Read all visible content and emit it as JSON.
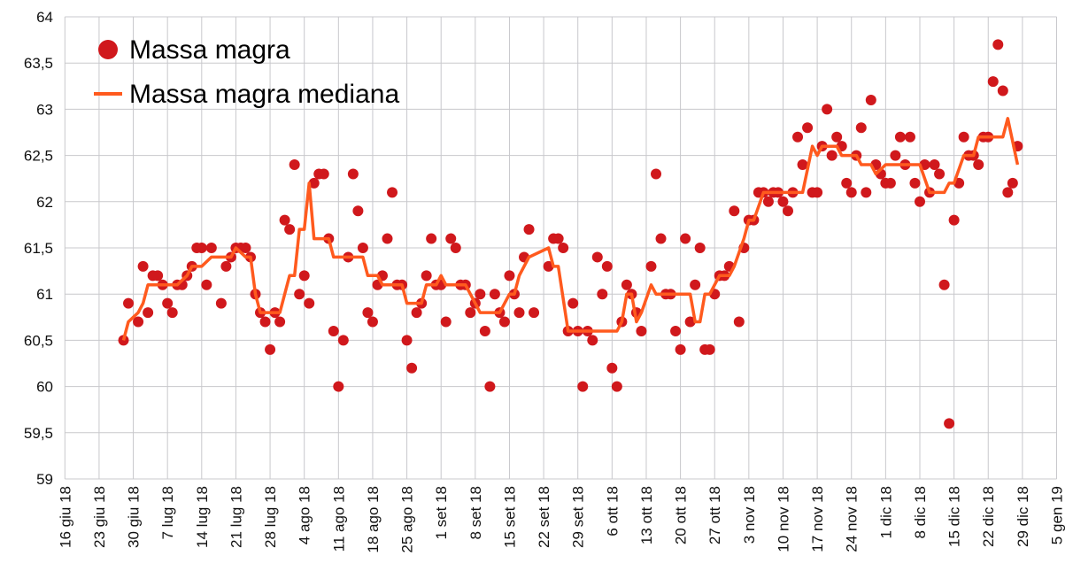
{
  "chart_data": {
    "type": "scatter",
    "title": "",
    "xlabel": "",
    "ylabel": "",
    "x_unit": "days since 16 giu 18",
    "xlim": [
      0,
      203
    ],
    "ylim": [
      59,
      64
    ],
    "grid": true,
    "legend_position": "top-left",
    "y_ticks": [
      59,
      59.5,
      60,
      60.5,
      61,
      61.5,
      62,
      62.5,
      63,
      63.5,
      64
    ],
    "y_tick_labels": [
      "59",
      "59,5",
      "60",
      "60,5",
      "61",
      "61,5",
      "62",
      "62,5",
      "63",
      "63,5",
      "64"
    ],
    "x_tick_labels": [
      "16 giu 18",
      "23 giu 18",
      "30 giu 18",
      "7 lug 18",
      "14 lug 18",
      "21 lug 18",
      "28 lug 18",
      "4 ago 18",
      "11 ago 18",
      "18 ago 18",
      "25 ago 18",
      "1 set 18",
      "8 set 18",
      "15 set 18",
      "22 set 18",
      "29 set 18",
      "6 ott 18",
      "13 ott 18",
      "20 ott 18",
      "27 ott 18",
      "3 nov 18",
      "10 nov 18",
      "17 nov 18",
      "24 nov 18",
      "1 dic 18",
      "8 dic 18",
      "15 dic 18",
      "22 dic 18",
      "29 dic 18",
      "5 gen 19"
    ],
    "series": [
      {
        "name": "Massa magra",
        "kind": "points",
        "color": "#d0181c",
        "points": [
          [
            12,
            60.5
          ],
          [
            13,
            60.9
          ],
          [
            15,
            60.7
          ],
          [
            16,
            61.3
          ],
          [
            17,
            60.8
          ],
          [
            18,
            61.2
          ],
          [
            19,
            61.2
          ],
          [
            20,
            61.1
          ],
          [
            21,
            60.9
          ],
          [
            22,
            60.8
          ],
          [
            23,
            61.1
          ],
          [
            24,
            61.1
          ],
          [
            25,
            61.2
          ],
          [
            26,
            61.3
          ],
          [
            27,
            61.5
          ],
          [
            28,
            61.5
          ],
          [
            29,
            61.1
          ],
          [
            30,
            61.5
          ],
          [
            32,
            60.9
          ],
          [
            33,
            61.3
          ],
          [
            34,
            61.4
          ],
          [
            35,
            61.5
          ],
          [
            36,
            61.5
          ],
          [
            37,
            61.5
          ],
          [
            38,
            61.4
          ],
          [
            39,
            61.0
          ],
          [
            40,
            60.8
          ],
          [
            41,
            60.7
          ],
          [
            42,
            60.4
          ],
          [
            43,
            60.8
          ],
          [
            44,
            60.7
          ],
          [
            45,
            61.8
          ],
          [
            46,
            61.7
          ],
          [
            47,
            62.4
          ],
          [
            48,
            61.0
          ],
          [
            49,
            61.2
          ],
          [
            50,
            60.9
          ],
          [
            51,
            62.2
          ],
          [
            52,
            62.3
          ],
          [
            53,
            62.3
          ],
          [
            54,
            61.6
          ],
          [
            55,
            60.6
          ],
          [
            56,
            60.0
          ],
          [
            57,
            60.5
          ],
          [
            58,
            61.4
          ],
          [
            59,
            62.3
          ],
          [
            60,
            61.9
          ],
          [
            61,
            61.5
          ],
          [
            62,
            60.8
          ],
          [
            63,
            60.7
          ],
          [
            64,
            61.1
          ],
          [
            65,
            61.2
          ],
          [
            66,
            61.6
          ],
          [
            67,
            62.1
          ],
          [
            68,
            61.1
          ],
          [
            69,
            61.1
          ],
          [
            70,
            60.5
          ],
          [
            71,
            60.2
          ],
          [
            72,
            60.8
          ],
          [
            73,
            60.9
          ],
          [
            74,
            61.2
          ],
          [
            75,
            61.6
          ],
          [
            76,
            61.1
          ],
          [
            77,
            61.1
          ],
          [
            78,
            60.7
          ],
          [
            79,
            61.6
          ],
          [
            80,
            61.5
          ],
          [
            81,
            61.1
          ],
          [
            82,
            61.1
          ],
          [
            83,
            60.8
          ],
          [
            84,
            60.9
          ],
          [
            85,
            61.0
          ],
          [
            86,
            60.6
          ],
          [
            87,
            60.0
          ],
          [
            88,
            61.0
          ],
          [
            89,
            60.8
          ],
          [
            90,
            60.7
          ],
          [
            91,
            61.2
          ],
          [
            92,
            61.0
          ],
          [
            93,
            60.8
          ],
          [
            94,
            61.4
          ],
          [
            95,
            61.7
          ],
          [
            96,
            60.8
          ],
          [
            99,
            61.3
          ],
          [
            100,
            61.6
          ],
          [
            101,
            61.6
          ],
          [
            102,
            61.5
          ],
          [
            103,
            60.6
          ],
          [
            104,
            60.9
          ],
          [
            105,
            60.6
          ],
          [
            106,
            60.0
          ],
          [
            107,
            60.6
          ],
          [
            108,
            60.5
          ],
          [
            109,
            61.4
          ],
          [
            110,
            61.0
          ],
          [
            111,
            61.3
          ],
          [
            112,
            60.2
          ],
          [
            113,
            60.0
          ],
          [
            114,
            60.7
          ],
          [
            115,
            61.1
          ],
          [
            116,
            61.0
          ],
          [
            117,
            60.8
          ],
          [
            118,
            60.6
          ],
          [
            120,
            61.3
          ],
          [
            121,
            62.3
          ],
          [
            122,
            61.6
          ],
          [
            123,
            61.0
          ],
          [
            124,
            61.0
          ],
          [
            125,
            60.6
          ],
          [
            126,
            60.4
          ],
          [
            127,
            61.6
          ],
          [
            128,
            60.7
          ],
          [
            129,
            61.1
          ],
          [
            130,
            61.5
          ],
          [
            131,
            60.4
          ],
          [
            132,
            60.4
          ],
          [
            133,
            61.0
          ],
          [
            134,
            61.2
          ],
          [
            135,
            61.2
          ],
          [
            136,
            61.3
          ],
          [
            137,
            61.9
          ],
          [
            138,
            60.7
          ],
          [
            139,
            61.5
          ],
          [
            140,
            61.8
          ],
          [
            141,
            61.8
          ],
          [
            142,
            62.1
          ],
          [
            143,
            62.1
          ],
          [
            144,
            62.0
          ],
          [
            145,
            62.1
          ],
          [
            146,
            62.1
          ],
          [
            147,
            62.0
          ],
          [
            148,
            61.9
          ],
          [
            149,
            62.1
          ],
          [
            150,
            62.7
          ],
          [
            151,
            62.4
          ],
          [
            152,
            62.8
          ],
          [
            153,
            62.1
          ],
          [
            154,
            62.1
          ],
          [
            155,
            62.6
          ],
          [
            156,
            63.0
          ],
          [
            157,
            62.5
          ],
          [
            158,
            62.7
          ],
          [
            159,
            62.6
          ],
          [
            160,
            62.2
          ],
          [
            161,
            62.1
          ],
          [
            162,
            62.5
          ],
          [
            163,
            62.8
          ],
          [
            164,
            62.1
          ],
          [
            165,
            63.1
          ],
          [
            166,
            62.4
          ],
          [
            167,
            62.3
          ],
          [
            168,
            62.2
          ],
          [
            169,
            62.2
          ],
          [
            170,
            62.5
          ],
          [
            171,
            62.7
          ],
          [
            172,
            62.4
          ],
          [
            173,
            62.7
          ],
          [
            174,
            62.2
          ],
          [
            175,
            62.0
          ],
          [
            176,
            62.4
          ],
          [
            177,
            62.1
          ],
          [
            178,
            62.4
          ],
          [
            179,
            62.3
          ],
          [
            180,
            61.1
          ],
          [
            181,
            59.6
          ],
          [
            182,
            61.8
          ],
          [
            183,
            62.2
          ],
          [
            184,
            62.7
          ],
          [
            185,
            62.5
          ],
          [
            186,
            62.5
          ],
          [
            187,
            62.4
          ],
          [
            188,
            62.7
          ],
          [
            189,
            62.7
          ],
          [
            190,
            63.3
          ],
          [
            191,
            63.7
          ],
          [
            192,
            63.2
          ],
          [
            193,
            62.1
          ],
          [
            194,
            62.2
          ],
          [
            195,
            62.6
          ]
        ]
      },
      {
        "name": "Massa magra mediana",
        "kind": "line",
        "color": "#ff5a1e",
        "points": [
          [
            12,
            60.5
          ],
          [
            13,
            60.7
          ],
          [
            15,
            60.8
          ],
          [
            16,
            60.9
          ],
          [
            17,
            61.1
          ],
          [
            23,
            61.1
          ],
          [
            25,
            61.2
          ],
          [
            26,
            61.3
          ],
          [
            28,
            61.3
          ],
          [
            30,
            61.4
          ],
          [
            34,
            61.4
          ],
          [
            35,
            61.5
          ],
          [
            37,
            61.4
          ],
          [
            38,
            61.4
          ],
          [
            39,
            61.0
          ],
          [
            40,
            60.8
          ],
          [
            44,
            60.8
          ],
          [
            46,
            61.2
          ],
          [
            47,
            61.2
          ],
          [
            48,
            61.7
          ],
          [
            49,
            61.7
          ],
          [
            50,
            62.2
          ],
          [
            51,
            61.6
          ],
          [
            54,
            61.6
          ],
          [
            55,
            61.4
          ],
          [
            61,
            61.4
          ],
          [
            62,
            61.2
          ],
          [
            64,
            61.2
          ],
          [
            65,
            61.1
          ],
          [
            69,
            61.1
          ],
          [
            70,
            60.9
          ],
          [
            73,
            60.9
          ],
          [
            74,
            61.1
          ],
          [
            76,
            61.1
          ],
          [
            77,
            61.2
          ],
          [
            78,
            61.1
          ],
          [
            82,
            61.1
          ],
          [
            84,
            60.9
          ],
          [
            85,
            60.8
          ],
          [
            89,
            60.8
          ],
          [
            91,
            61.0
          ],
          [
            92,
            61.0
          ],
          [
            93,
            61.2
          ],
          [
            95,
            61.4
          ],
          [
            99,
            61.5
          ],
          [
            100,
            61.3
          ],
          [
            101,
            61.3
          ],
          [
            103,
            60.6
          ],
          [
            113,
            60.6
          ],
          [
            114,
            60.7
          ],
          [
            115,
            61.0
          ],
          [
            116,
            61.0
          ],
          [
            117,
            60.7
          ],
          [
            118,
            60.8
          ],
          [
            120,
            61.1
          ],
          [
            121,
            61.0
          ],
          [
            128,
            61.0
          ],
          [
            129,
            60.7
          ],
          [
            130,
            60.7
          ],
          [
            131,
            61.0
          ],
          [
            132,
            61.0
          ],
          [
            134,
            61.2
          ],
          [
            136,
            61.2
          ],
          [
            137,
            61.3
          ],
          [
            139,
            61.6
          ],
          [
            140,
            61.8
          ],
          [
            141,
            61.8
          ],
          [
            143,
            62.1
          ],
          [
            151,
            62.1
          ],
          [
            153,
            62.6
          ],
          [
            154,
            62.5
          ],
          [
            155,
            62.6
          ],
          [
            158,
            62.6
          ],
          [
            159,
            62.5
          ],
          [
            162,
            62.5
          ],
          [
            163,
            62.4
          ],
          [
            165,
            62.4
          ],
          [
            166,
            62.3
          ],
          [
            168,
            62.4
          ],
          [
            175,
            62.4
          ],
          [
            177,
            62.1
          ],
          [
            180,
            62.1
          ],
          [
            181,
            62.2
          ],
          [
            182,
            62.2
          ],
          [
            184,
            62.5
          ],
          [
            186,
            62.5
          ],
          [
            187,
            62.7
          ],
          [
            192,
            62.7
          ],
          [
            193,
            62.9
          ],
          [
            195,
            62.4
          ]
        ]
      }
    ]
  }
}
